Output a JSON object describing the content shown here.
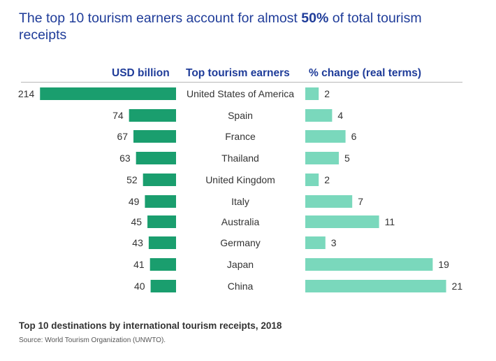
{
  "title": {
    "part1": "The top 10 tourism earners account for almost ",
    "bold": "50%",
    "part2": " of total tourism receipts"
  },
  "headers": {
    "left": "USD billion",
    "middle": "Top tourism earners",
    "right": "% change (real terms)"
  },
  "colors": {
    "receipts_bar": "#1a9e6e",
    "change_bar": "#7ad8bc",
    "header_text": "#1f3c99",
    "rule": "#b8b8b8"
  },
  "chart_data": {
    "type": "bar",
    "categories": [
      "United States of America",
      "Spain",
      "France",
      "Thailand",
      "United Kingdom",
      "Italy",
      "Australia",
      "Germany",
      "Japan",
      "China"
    ],
    "series": [
      {
        "name": "USD billion",
        "values": [
          214,
          74,
          67,
          63,
          52,
          49,
          45,
          43,
          41,
          40
        ]
      },
      {
        "name": "% change (real terms)",
        "values": [
          2,
          4,
          6,
          5,
          2,
          7,
          11,
          3,
          19,
          21
        ]
      }
    ]
  },
  "footer": {
    "title": "Top 10 destinations by international tourism receipts, 2018",
    "source": "Source: World Tourism Organization (UNWTO)."
  }
}
